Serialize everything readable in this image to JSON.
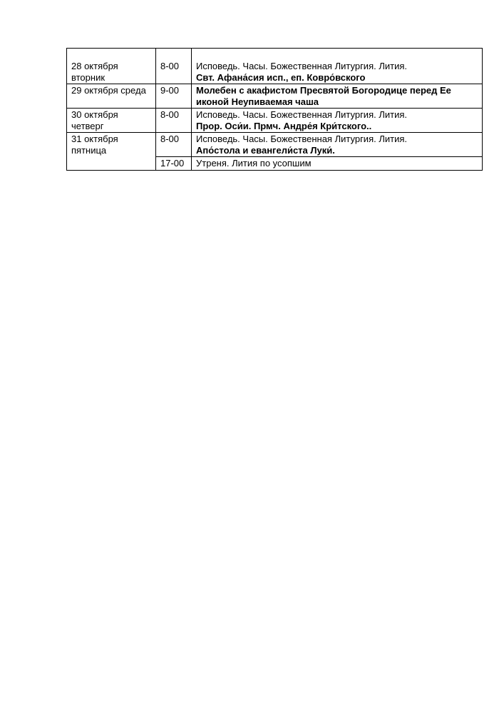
{
  "page": {
    "background": "#ffffff",
    "text_color": "#000000",
    "table_border_color": "#000000"
  },
  "schedule": {
    "rows": [
      {
        "date": "28 октября вторник",
        "time": "8-00",
        "line1": "Исповедь. Часы. Божественная Литургия. Лития.",
        "line2": "Свт. Афана́сия исп., еп. Ковро́вского"
      },
      {
        "date": "29 октября среда",
        "time": "9-00",
        "line1": "Молебен с акафистом Пресвятой Богородице перед Ее",
        "line2": "иконой Неупиваемая чаша"
      },
      {
        "date": "30 октября четверг",
        "time": "8-00",
        "line1": "Исповедь. Часы. Божественная Литургия. Лития.",
        "line2": "Прор. Оси́и. Прмч. Андре́я Кри́тского.."
      },
      {
        "date": "31 октября пятница",
        "time": "8-00",
        "line1": "Исповедь. Часы. Божественная Литургия. Лития.",
        "line2": "Апо́стола и евангели́ста Луки́."
      },
      {
        "date": "",
        "time": "17-00",
        "line1": "Утреня. Лития по усопшим"
      }
    ]
  }
}
